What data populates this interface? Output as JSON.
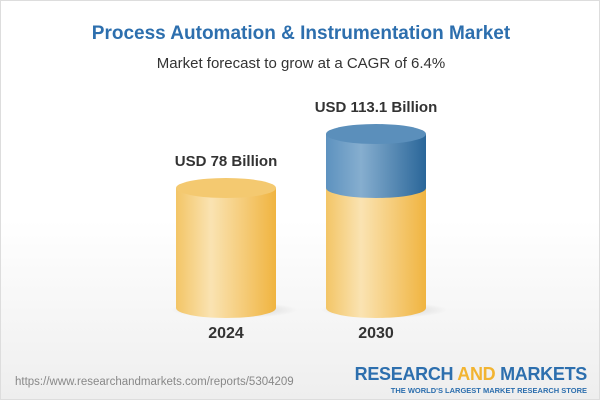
{
  "chart_data": {
    "type": "bar",
    "style": "3d-cylinder",
    "title": "Process Automation & Instrumentation Market",
    "subtitle": "Market forecast to grow at a CAGR of 6.4%",
    "categories": [
      "2024",
      "2030"
    ],
    "values": [
      78,
      113.1
    ],
    "unit": "USD Billion",
    "data_labels": [
      "USD 78 Billion",
      "USD 113.1 Billion"
    ],
    "colors": {
      "base": "#f2c260",
      "growth": "#3b78ab",
      "title": "#2d6fae"
    }
  },
  "footer": {
    "url": "https://www.researchandmarkets.com/reports/5304209",
    "logo_part1": "RESEARCH ",
    "logo_part2": "AND",
    "logo_part3": " MARKETS",
    "tagline": "THE WORLD'S LARGEST MARKET RESEARCH STORE"
  }
}
